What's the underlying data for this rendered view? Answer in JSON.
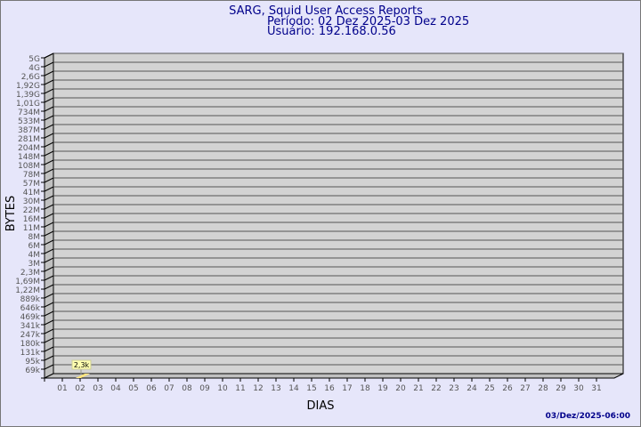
{
  "chart_data": {
    "type": "bar",
    "title": "SARG, Squid User Access Reports",
    "subtitle_period": "Período: 02 Dez 2025-03 Dez 2025",
    "subtitle_user": "Usuário: 192.168.0.56",
    "xlabel": "DIAS",
    "ylabel": "BYTES",
    "yscale": "log",
    "grid": true,
    "y_tick_labels": [
      "5G",
      "4G",
      "2,6G",
      "1,92G",
      "1,39G",
      "1,01G",
      "734M",
      "533M",
      "387M",
      "281M",
      "204M",
      "148M",
      "108M",
      "78M",
      "57M",
      "41M",
      "30M",
      "22M",
      "16M",
      "11M",
      "8M",
      "6M",
      "4M",
      "3M",
      "2,3M",
      "1,69M",
      "1,22M",
      "889k",
      "646k",
      "469k",
      "341k",
      "247k",
      "180k",
      "131k",
      "95k",
      "69k"
    ],
    "categories": [
      "01",
      "02",
      "03",
      "04",
      "05",
      "06",
      "07",
      "08",
      "09",
      "10",
      "11",
      "12",
      "13",
      "14",
      "15",
      "16",
      "17",
      "18",
      "19",
      "20",
      "21",
      "22",
      "23",
      "24",
      "25",
      "26",
      "27",
      "28",
      "29",
      "30",
      "31"
    ],
    "values": [
      0,
      2300,
      0,
      0,
      0,
      0,
      0,
      0,
      0,
      0,
      0,
      0,
      0,
      0,
      0,
      0,
      0,
      0,
      0,
      0,
      0,
      0,
      0,
      0,
      0,
      0,
      0,
      0,
      0,
      0,
      0
    ],
    "data_labels": [
      {
        "category": "02",
        "label": "2,3k"
      }
    ],
    "bar_color": "#ffe680"
  },
  "footer": {
    "timestamp": "03/Dez/2025-06:00"
  },
  "colors": {
    "background": "#e6e6fa",
    "plot": "#d3d3d3",
    "title": "#00008b"
  }
}
